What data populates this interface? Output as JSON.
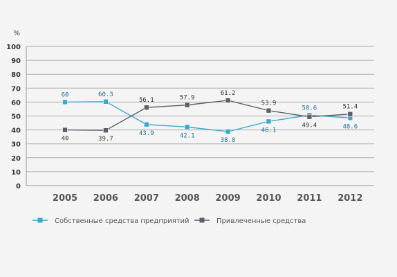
{
  "chart_data": {
    "type": "line",
    "unit_label": "%",
    "categories": [
      "2005",
      "2006",
      "2007",
      "2008",
      "2009",
      "2010",
      "2011",
      "2012"
    ],
    "y_ticks": [
      0,
      10,
      20,
      30,
      40,
      50,
      60,
      70,
      80,
      90,
      100
    ],
    "ylim": [
      0,
      100
    ],
    "grid": true,
    "legend_position": "bottom",
    "series": [
      {
        "name": "Собственные средства предприятий",
        "color": "#3aa9cc",
        "label_color": "#1a6e96",
        "values": [
          60,
          60.3,
          43.9,
          42.1,
          38.8,
          46.1,
          50.6,
          48.6
        ],
        "labels": [
          "60",
          "60.3",
          "43.9",
          "42.1",
          "38.8",
          "46.1",
          "50.6",
          "48.6"
        ]
      },
      {
        "name": "Привлеченные средства",
        "color": "#5a6166",
        "label_color": "#333333",
        "values": [
          40,
          39.7,
          56.1,
          57.9,
          61.2,
          53.9,
          49.4,
          51.4
        ],
        "labels": [
          "40",
          "39.7",
          "56.1",
          "57.9",
          "61.2",
          "53.9",
          "49.4",
          "51.4"
        ]
      }
    ]
  }
}
